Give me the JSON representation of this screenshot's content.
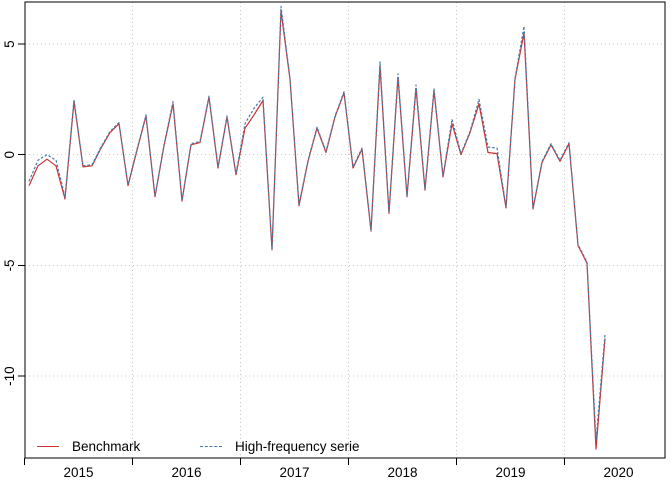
{
  "figure": {
    "background": "#ffffff",
    "plot_border_color": "#000000",
    "grid_color": "#c8c8c8",
    "text_color": "#000000"
  },
  "legend": {
    "items": [
      {
        "label": "Benchmark",
        "style": "solid",
        "color": "#cb3333"
      },
      {
        "label": "High-frequency serie",
        "style": "dashed",
        "color": "#467bac"
      }
    ]
  },
  "chart_data": {
    "type": "line",
    "title": "",
    "xlabel": "",
    "ylabel": "",
    "x_start": "2015-01",
    "x_freq": "monthly",
    "n_points": 65,
    "grid": true,
    "grid_style": "dotted",
    "legend_position": "bottom-inside",
    "x_axis": {
      "tick_years": [
        "2015",
        "2016",
        "2017",
        "2018",
        "2019",
        "2020"
      ]
    },
    "y_axis": {
      "ticks": [
        5,
        0,
        -5,
        -10
      ],
      "ylim": [
        -13.7,
        6.9
      ]
    },
    "series": [
      {
        "name": "Benchmark",
        "color": "#cb3333",
        "line_style": "solid",
        "values": [
          -1.4,
          -0.5,
          -0.2,
          -0.5,
          -2.0,
          2.4,
          -0.55,
          -0.5,
          0.3,
          1.0,
          1.4,
          -1.4,
          0.2,
          1.75,
          -1.9,
          0.4,
          2.3,
          -2.1,
          0.45,
          0.55,
          2.6,
          -0.6,
          1.7,
          -0.9,
          1.2,
          1.8,
          2.45,
          -4.3,
          6.5,
          3.4,
          -2.3,
          -0.3,
          1.2,
          0.1,
          1.7,
          2.8,
          -0.6,
          0.25,
          -3.45,
          4.0,
          -2.65,
          3.5,
          -1.9,
          3.0,
          -1.6,
          2.9,
          -1.0,
          1.4,
          0.0,
          1.0,
          2.3,
          0.1,
          0.05,
          -2.4,
          3.4,
          5.5,
          -2.45,
          -0.35,
          0.45,
          -0.3,
          0.5,
          -4.1,
          -4.9,
          -13.3,
          -8.3
        ]
      },
      {
        "name": "High-frequency serie",
        "color": "#467bac",
        "line_style": "dashed",
        "values": [
          -1.2,
          -0.25,
          0.0,
          -0.25,
          -1.9,
          2.5,
          -0.5,
          -0.45,
          0.35,
          1.05,
          1.45,
          -1.35,
          0.25,
          1.8,
          -1.85,
          0.45,
          2.4,
          -2.05,
          0.5,
          0.6,
          2.65,
          -0.55,
          1.75,
          -0.85,
          1.4,
          2.1,
          2.6,
          -4.25,
          6.7,
          3.45,
          -2.25,
          -0.25,
          1.25,
          0.15,
          1.75,
          2.85,
          -0.55,
          0.3,
          -3.4,
          4.2,
          -2.6,
          3.65,
          -1.85,
          3.15,
          -1.55,
          3.0,
          -0.95,
          1.6,
          0.05,
          1.05,
          2.5,
          0.35,
          0.3,
          -2.35,
          3.45,
          5.8,
          -2.4,
          -0.3,
          0.5,
          -0.25,
          0.55,
          -4.05,
          -4.85,
          -12.9,
          -8.1
        ]
      }
    ]
  }
}
